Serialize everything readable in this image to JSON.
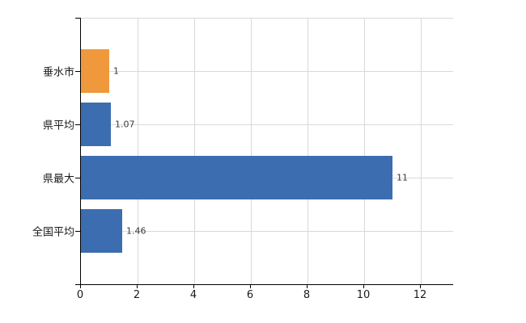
{
  "chart_data": {
    "type": "bar",
    "orientation": "horizontal",
    "title": "",
    "xlabel": "",
    "ylabel": "",
    "categories": [
      "垂水市",
      "県平均",
      "県最大",
      "全国平均"
    ],
    "values": [
      1,
      1.07,
      11,
      1.46
    ],
    "value_labels": [
      "1",
      "1.07",
      "11",
      "1.46"
    ],
    "bar_colors": [
      "#f0993c",
      "#3c6db0",
      "#3c6db0",
      "#3c6db0"
    ],
    "x_ticks": [
      0,
      2,
      4,
      6,
      8,
      10,
      12
    ],
    "x_tick_labels": [
      "0",
      "2",
      "4",
      "6",
      "8",
      "10",
      "12"
    ],
    "xlim": [
      0,
      13.17
    ],
    "grid": "on",
    "legend": "none",
    "colors": {
      "gridline": "#d9d9d9",
      "axis": "#000000",
      "tick_text": "#1a1a1a",
      "value_text": "#3a3a3a",
      "background": "#ffffff"
    }
  }
}
